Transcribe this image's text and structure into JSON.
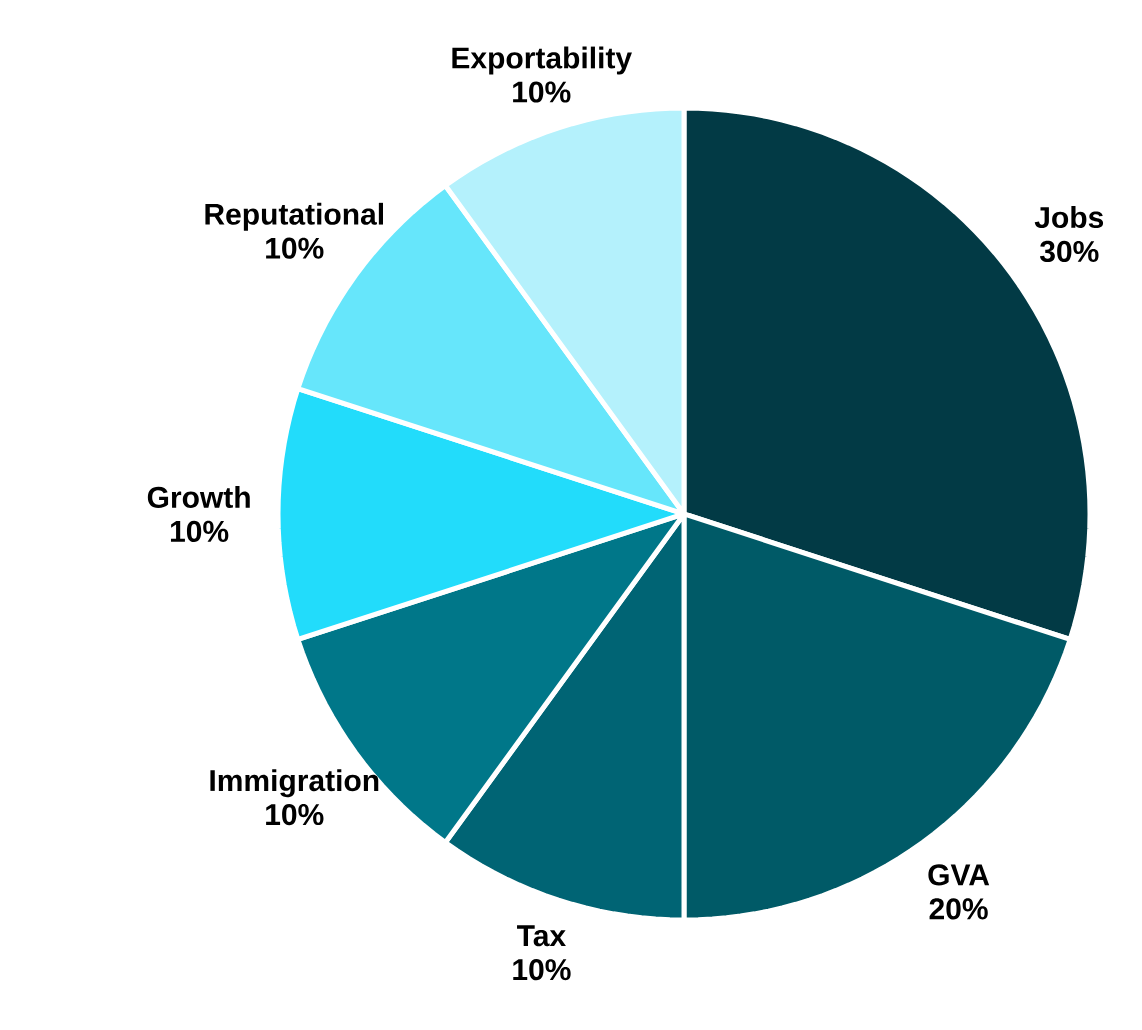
{
  "chart_data": {
    "type": "pie",
    "categories": [
      "Jobs",
      "GVA",
      "Tax",
      "Immigration",
      "Growth",
      "Reputational",
      "Exportability"
    ],
    "values": [
      30,
      20,
      10,
      10,
      10,
      10,
      10
    ],
    "value_labels": [
      "30%",
      "20%",
      "10%",
      "10%",
      "10%",
      "10%",
      "10%"
    ],
    "colors": [
      "#023a45",
      "#005a67",
      "#006474",
      "#007789",
      "#22dcfb",
      "#66e6fb",
      "#b4f1fc"
    ]
  }
}
